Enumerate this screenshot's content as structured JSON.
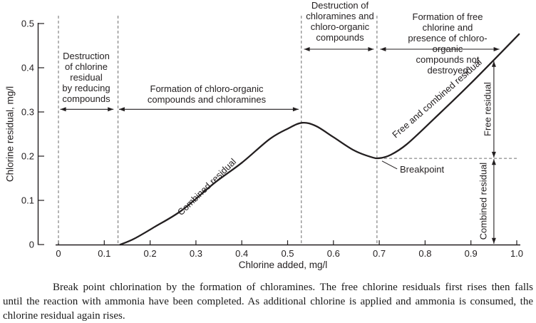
{
  "colors": {
    "ink": "#231f20",
    "dashed": "#6d6d6d",
    "background": "#ffffff"
  },
  "chart_data": {
    "type": "line",
    "title": "",
    "xlabel": "Chlorine added, mg/l",
    "ylabel": "Chlorine residual, mg/l",
    "xlim": [
      0,
      1.0
    ],
    "ylim": [
      0,
      0.5
    ],
    "grid": false,
    "legend": "none",
    "x_ticks": {
      "values": [
        0,
        0.1,
        0.2,
        0.3,
        0.4,
        0.5,
        0.6,
        0.7,
        0.8,
        0.9,
        1.0
      ],
      "labels": [
        "0",
        "0.1",
        "0.2",
        "0.3",
        "0.4",
        "0.5",
        "0.6",
        "0.7",
        "0.8",
        "0.9",
        "1.0"
      ]
    },
    "y_ticks": {
      "values": [
        0,
        0.1,
        0.2,
        0.3,
        0.4,
        0.5
      ],
      "labels": [
        "0",
        "0.1",
        "0.2",
        "0.3",
        "0.4",
        "0.5"
      ]
    },
    "series": [
      {
        "name": "Chlorine residual curve",
        "points": [
          [
            0.135,
            0.0
          ],
          [
            0.165,
            0.013
          ],
          [
            0.21,
            0.04
          ],
          [
            0.27,
            0.078
          ],
          [
            0.34,
            0.139
          ],
          [
            0.4,
            0.185
          ],
          [
            0.46,
            0.238
          ],
          [
            0.5,
            0.262
          ],
          [
            0.532,
            0.2755
          ],
          [
            0.562,
            0.268
          ],
          [
            0.6,
            0.243
          ],
          [
            0.645,
            0.213
          ],
          [
            0.682,
            0.198
          ],
          [
            0.7,
            0.1955
          ],
          [
            0.725,
            0.203
          ],
          [
            0.76,
            0.227
          ],
          [
            0.82,
            0.285
          ],
          [
            0.9,
            0.365
          ],
          [
            1.005,
            0.476
          ]
        ]
      }
    ],
    "key_points": {
      "hump_peak": [
        0.53,
        0.276
      ],
      "breakpoint": [
        0.7,
        0.195
      ],
      "curve_end": [
        1.0,
        0.475
      ]
    },
    "dashed_vlines": [
      0,
      0.13,
      0.53,
      0.695
    ],
    "dashed_hline": {
      "y": 0.195,
      "x1": 0.7,
      "x2": 1.0
    },
    "span_arrows": [
      {
        "x1": 0.004,
        "x2": 0.12,
        "y": 0.306
      },
      {
        "x1": 0.132,
        "x2": 0.524,
        "y": 0.306
      },
      {
        "x1": 0.536,
        "x2": 0.688,
        "y": 0.442
      },
      {
        "x1": 0.702,
        "x2": 0.962,
        "y": 0.442
      }
    ],
    "vertical_arrows": [
      {
        "x": 0.95,
        "y1": 0.197,
        "y2": 0.415,
        "label": "Free residual"
      },
      {
        "x": 0.95,
        "y1": 0.002,
        "y2": 0.193,
        "label": "Combined residual"
      }
    ],
    "breakpoint_pointer": {
      "from": [
        0.706,
        0.189
      ],
      "to": [
        0.739,
        0.171
      ]
    },
    "annotations": {
      "region_1": "Destruction\nof chlorine\nresidual\nby reducing\ncompounds",
      "region_2": "Formation of chloro-organic\ncompounds and chloramines",
      "region_3": "Destruction of\nchloramines and\nchloro-organic\ncompounds",
      "region_4": "Formation of free chlorine and\npresence of chloro-organic\ncompounds not destroyed",
      "combined_residual_curve_label": "Combined residual",
      "free_and_combined_curve_label": "Free and combined residual",
      "free_residual_span_label": "Free residual",
      "combined_residual_span_label": "Combined residual",
      "breakpoint_label": "Breakpoint"
    }
  },
  "caption": {
    "lines": [
      "Break point chlorination by the formation of chloramines. The free chlorine residuals first rises then falls",
      "until the reaction with ammonia have been completed. As additional chlorine is applied and ammonia is consumed, the",
      "chlorine residual again rises."
    ]
  }
}
